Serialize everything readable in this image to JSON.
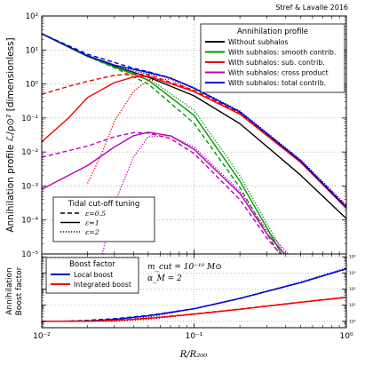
{
  "chart_data": [
    {
      "type": "line",
      "title": "Stref & Lavalle 2016",
      "ylabel": "Annihilation profile ℒ/ρ⊙² [dimensionless]",
      "xscale": "log",
      "yscale": "log",
      "xlim": [
        0.01,
        1
      ],
      "ylim": [
        1e-05,
        100
      ],
      "x_ticks": [
        0.01,
        0.1,
        1
      ],
      "x_tick_labels": [
        "10⁻²",
        "10⁻¹",
        "10⁰"
      ],
      "y_ticks": [
        1e-05,
        0.0001,
        0.001,
        0.01,
        0.1,
        1,
        10,
        100
      ],
      "y_tick_labels": [
        "10⁻⁵",
        "10⁻⁴",
        "10⁻³",
        "10⁻²",
        "10⁻¹",
        "10⁰",
        "10¹",
        "10²"
      ],
      "grid": true,
      "legends": [
        {
          "title": "Annihilation profile",
          "placement": "top-right",
          "entries": [
            {
              "label": "Without subhalos",
              "color": "#000000"
            },
            {
              "label": "With subhalos: smooth contrib.",
              "color": "#009900"
            },
            {
              "label": "With subhalos: sub. contrib.",
              "color": "#ee0000"
            },
            {
              "label": "With subhalos: cross product",
              "color": "#bb00bb"
            },
            {
              "label": "With subhalos: total contrib.",
              "color": "#0000cc"
            }
          ]
        },
        {
          "title": "Tidal cut-off tuning",
          "placement": "bottom-left",
          "entries": [
            {
              "label": "ε=0.5",
              "style": "dashed"
            },
            {
              "label": "ε=1",
              "style": "solid"
            },
            {
              "label": "ε=2",
              "style": "dotted"
            }
          ]
        }
      ],
      "series": [
        {
          "color": "#000000",
          "dash": "solid",
          "x": [
            0.01,
            0.02,
            0.03,
            0.05,
            0.1,
            0.2,
            0.5,
            1
          ],
          "y": [
            30,
            6.5,
            3.3,
            1.6,
            0.45,
            0.068,
            0.0021,
            0.00011
          ]
        },
        {
          "color": "#009900",
          "dash": "solid",
          "x": [
            0.01,
            0.02,
            0.03,
            0.05,
            0.1,
            0.2,
            0.3,
            0.4
          ],
          "y": [
            30,
            6.5,
            3.2,
            1.3,
            0.12,
            0.0014,
            6e-05,
            6e-06
          ]
        },
        {
          "color": "#009900",
          "dash": "dashed",
          "x": [
            0.01,
            0.02,
            0.03,
            0.05,
            0.1,
            0.2,
            0.3,
            0.4
          ],
          "y": [
            30,
            6.5,
            3.0,
            1.0,
            0.07,
            0.0009,
            4e-05,
            5e-06
          ]
        },
        {
          "color": "#009900",
          "dash": "dotted",
          "x": [
            0.01,
            0.02,
            0.03,
            0.05,
            0.1,
            0.2,
            0.3,
            0.4
          ],
          "y": [
            30,
            6.5,
            3.3,
            1.5,
            0.17,
            0.002,
            8e-05,
            8e-06
          ]
        },
        {
          "color": "#ee0000",
          "dash": "solid",
          "x": [
            0.01,
            0.015,
            0.02,
            0.03,
            0.04,
            0.05,
            0.1,
            0.2,
            0.5,
            1
          ],
          "y": [
            0.02,
            0.1,
            0.4,
            1.1,
            1.6,
            1.7,
            0.6,
            0.13,
            0.005,
            0.00022
          ]
        },
        {
          "color": "#ee0000",
          "dash": "dashed",
          "x": [
            0.01,
            0.015,
            0.02,
            0.03,
            0.04,
            0.05,
            0.1,
            0.2,
            0.5,
            1
          ],
          "y": [
            0.5,
            0.85,
            1.2,
            1.8,
            1.95,
            1.9,
            0.65,
            0.14,
            0.0055,
            0.00025
          ]
        },
        {
          "color": "#ee0000",
          "dash": "dotted",
          "x": [
            0.02,
            0.025,
            0.03,
            0.04,
            0.05,
            0.07,
            0.1,
            0.2,
            0.5,
            1
          ],
          "y": [
            0.0012,
            0.01,
            0.08,
            0.6,
            1.3,
            1.4,
            0.6,
            0.13,
            0.005,
            0.00022
          ]
        },
        {
          "color": "#bb00bb",
          "dash": "solid",
          "x": [
            0.01,
            0.02,
            0.03,
            0.04,
            0.05,
            0.07,
            0.1,
            0.2,
            0.3,
            0.5
          ],
          "y": [
            0.0008,
            0.004,
            0.014,
            0.03,
            0.038,
            0.03,
            0.012,
            0.0006,
            4e-05,
            3e-06
          ]
        },
        {
          "color": "#bb00bb",
          "dash": "dashed",
          "x": [
            0.01,
            0.02,
            0.03,
            0.04,
            0.05,
            0.07,
            0.1,
            0.2,
            0.3,
            0.5
          ],
          "y": [
            0.007,
            0.015,
            0.028,
            0.037,
            0.036,
            0.025,
            0.009,
            0.0004,
            3e-05,
            2e-06
          ]
        },
        {
          "color": "#bb00bb",
          "dash": "dotted",
          "x": [
            0.025,
            0.03,
            0.04,
            0.05,
            0.07,
            0.1,
            0.2,
            0.3,
            0.5
          ],
          "y": [
            1e-05,
            0.0003,
            0.007,
            0.028,
            0.03,
            0.014,
            0.0007,
            5e-05,
            4e-06
          ]
        },
        {
          "color": "#0000cc",
          "dash": "solid",
          "x": [
            0.01,
            0.02,
            0.03,
            0.04,
            0.05,
            0.07,
            0.1,
            0.2,
            0.5,
            1
          ],
          "y": [
            30,
            6.8,
            3.6,
            2.7,
            2.2,
            1.5,
            0.75,
            0.15,
            0.0055,
            0.00023
          ]
        },
        {
          "color": "#0000cc",
          "dash": "dashed",
          "x": [
            0.01,
            0.02,
            0.03,
            0.04,
            0.05,
            0.07,
            0.1,
            0.2,
            0.5,
            1
          ],
          "y": [
            30,
            7.5,
            4.3,
            2.9,
            2.3,
            1.5,
            0.75,
            0.15,
            0.0056,
            0.00024
          ]
        },
        {
          "color": "#0000cc",
          "dash": "dotted",
          "x": [
            0.01,
            0.02,
            0.03,
            0.04,
            0.05,
            0.07,
            0.1,
            0.2,
            0.5,
            1
          ],
          "y": [
            30,
            6.6,
            3.4,
            2.4,
            2.0,
            1.5,
            0.78,
            0.16,
            0.006,
            0.00027
          ]
        }
      ]
    },
    {
      "type": "line",
      "xlabel": "R/R₂₀₀",
      "ylabel": "Annihilation Boost factor",
      "xscale": "log",
      "yscale": "log",
      "xlim": [
        0.01,
        1
      ],
      "ylim": [
        0.4,
        15000
      ],
      "x_ticks": [
        0.01,
        0.1,
        1
      ],
      "x_tick_labels": [
        "10⁻²",
        "10⁻¹",
        "10⁰"
      ],
      "y_ticks": [
        1,
        10,
        100,
        1000,
        10000
      ],
      "y_tick_labels": [
        "10⁰",
        "10¹",
        "10²",
        "10³",
        "10⁴"
      ],
      "grid": true,
      "annotations": [
        "m_cut = 10⁻¹⁰ M⊙",
        "α_M = 2"
      ],
      "legends": [
        {
          "title": "Boost factor",
          "placement": "top-left",
          "entries": [
            {
              "label": "Local boost",
              "color": "#0000cc"
            },
            {
              "label": "Integrated boost",
              "color": "#ee0000"
            }
          ]
        }
      ],
      "series": [
        {
          "color": "#0000cc",
          "dash": "solid",
          "x": [
            0.01,
            0.02,
            0.03,
            0.05,
            0.1,
            0.2,
            0.5,
            1
          ],
          "y": [
            1,
            1.05,
            1.3,
            2.2,
            6,
            26,
            250,
            1800
          ]
        },
        {
          "color": "#0000cc",
          "dash": "dashed",
          "x": [
            0.01,
            0.015,
            0.02,
            0.03,
            0.05,
            0.1,
            0.2,
            0.5,
            1
          ],
          "y": [
            1,
            1.02,
            1.15,
            1.45,
            2.3,
            6,
            26,
            250,
            1800
          ]
        },
        {
          "color": "#0000cc",
          "dash": "dotted",
          "x": [
            0.01,
            0.02,
            0.03,
            0.05,
            0.1,
            0.2,
            0.5,
            1
          ],
          "y": [
            1,
            1,
            1.05,
            1.8,
            6,
            27,
            270,
            2000
          ]
        },
        {
          "color": "#ee0000",
          "dash": "solid",
          "x": [
            0.01,
            0.02,
            0.03,
            0.05,
            0.1,
            0.2,
            0.5,
            1
          ],
          "y": [
            1,
            1.02,
            1.12,
            1.5,
            2.8,
            5.5,
            15,
            30
          ]
        },
        {
          "color": "#ee0000",
          "dash": "dashed",
          "x": [
            0.01,
            0.02,
            0.03,
            0.05,
            0.1,
            0.2,
            0.5,
            1
          ],
          "y": [
            1,
            1.03,
            1.15,
            1.55,
            2.9,
            5.7,
            15.5,
            31
          ]
        },
        {
          "color": "#ee0000",
          "dash": "dotted",
          "x": [
            0.01,
            0.02,
            0.03,
            0.05,
            0.1,
            0.2,
            0.5,
            1
          ],
          "y": [
            1,
            1,
            1.02,
            1.35,
            2.7,
            5.6,
            15.5,
            32
          ]
        }
      ]
    }
  ]
}
